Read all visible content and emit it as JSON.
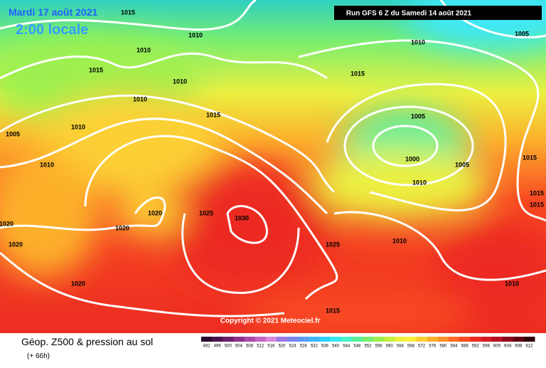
{
  "header": {
    "date": "Mardi 17 août 2021",
    "time": "2:00 locale",
    "run": "Run GFS 6 Z du Samedi 14 août 2021"
  },
  "copyright": "Copyright © 2021 Meteociel.fr",
  "footer": {
    "title": "Géop. Z500 & pression au sol",
    "lead": "(+ 66h)"
  },
  "isobar_labels": [
    "1015",
    "1010",
    "1010",
    "1015",
    "1010",
    "1010",
    "1015",
    "1010",
    "1005",
    "1010",
    "1020",
    "1025",
    "1030",
    "1020",
    "1020",
    "1020",
    "1020",
    "1025",
    "1010",
    "1015",
    "1015",
    "1010",
    "1005",
    "1005",
    "1000",
    "1005",
    "1010",
    "1015",
    "1015",
    "1015",
    "1010"
  ],
  "legend": {
    "values": [
      "492",
      "496",
      "500",
      "504",
      "508",
      "512",
      "516",
      "520",
      "524",
      "528",
      "532",
      "536",
      "540",
      "544",
      "548",
      "552",
      "556",
      "560",
      "564",
      "568",
      "572",
      "576",
      "580",
      "584",
      "588",
      "592",
      "596",
      "600",
      "604",
      "608",
      "612"
    ],
    "colors": [
      "#2b0a2b",
      "#4a124a",
      "#6a1e6a",
      "#8a2e8a",
      "#a946a9",
      "#c464c4",
      "#d888d8",
      "#9c7ae0",
      "#7a86ec",
      "#5c9cf4",
      "#40b4fa",
      "#30d0fc",
      "#38e8f0",
      "#48f4c8",
      "#5cf09c",
      "#78ee70",
      "#9cf050",
      "#c4f040",
      "#ecf040",
      "#fcec3c",
      "#fcd034",
      "#fcb02c",
      "#fc9028",
      "#fc6c24",
      "#f84a22",
      "#ec2c22",
      "#d41c22",
      "#b41020",
      "#8c081c",
      "#600414",
      "#300008"
    ]
  }
}
